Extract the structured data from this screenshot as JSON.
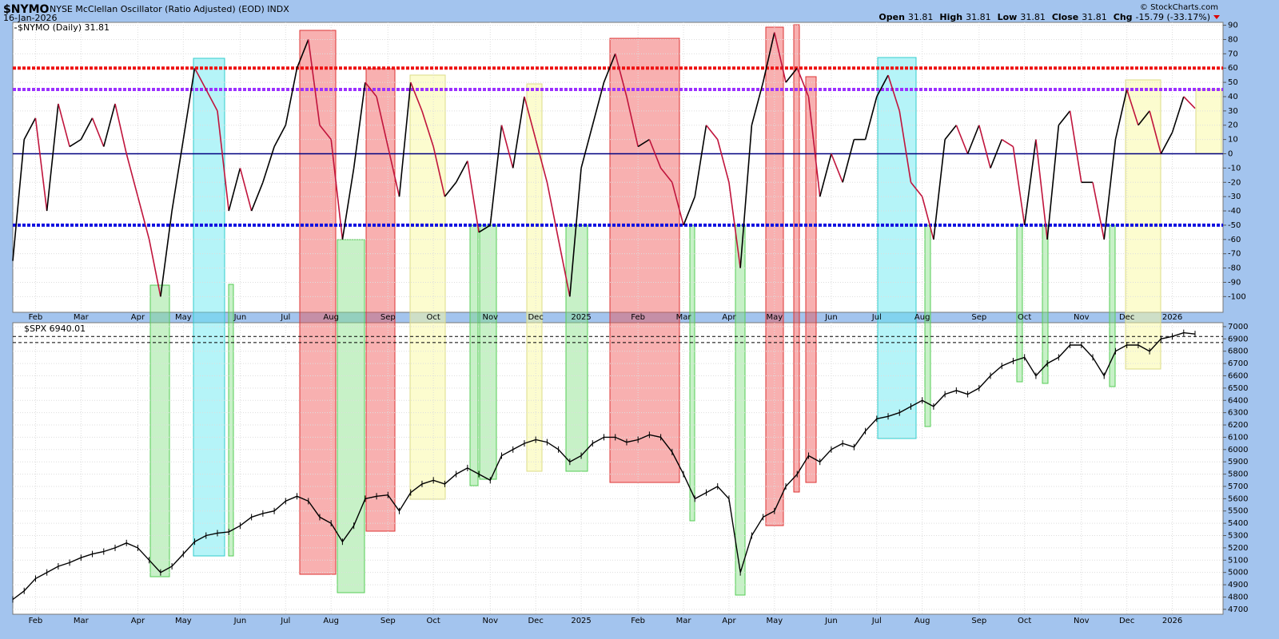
{
  "chart_data": [
    {
      "type": "line",
      "title": "$NYMO",
      "subtitle": "NYSE McClellan Oscillator (Ratio Adjusted) (EOD) INDX",
      "date": "16-Jan-2026",
      "credit": "© StockCharts.com",
      "quote": [
        {
          "label": "Open",
          "value": 31.81
        },
        {
          "label": "High",
          "value": 31.81
        },
        {
          "label": "Low",
          "value": 31.81
        },
        {
          "label": "Close",
          "value": 31.81
        },
        {
          "label": "Chg",
          "value": "-15.79 (-33.17%)"
        }
      ],
      "series": [
        {
          "name": "$NYMO (Daily)",
          "color": "#000000",
          "down_color": "#c0143c",
          "values": [
            -75,
            10,
            25,
            -40,
            35,
            5,
            10,
            25,
            5,
            35,
            0,
            -30,
            -60,
            -100,
            -40,
            10,
            60,
            45,
            30,
            -40,
            -10,
            -40,
            -20,
            5,
            20,
            60,
            80,
            20,
            10,
            -60,
            -10,
            50,
            40,
            5,
            -30,
            50,
            30,
            5,
            -30,
            -20,
            -5,
            -55,
            -50,
            20,
            -10,
            40,
            10,
            -20,
            -60,
            -100,
            -10,
            20,
            50,
            70,
            40,
            5,
            10,
            -10,
            -20,
            -50,
            -30,
            20,
            10,
            -20,
            -80,
            20,
            50,
            85,
            50,
            60,
            40,
            -30,
            0,
            -20,
            10,
            10,
            40,
            55,
            30,
            -20,
            -30,
            -60,
            10,
            20,
            0,
            20,
            -10,
            10,
            5,
            -50,
            10,
            -60,
            20,
            30,
            -20,
            -20,
            -60,
            10,
            45,
            20,
            30,
            0,
            15,
            40,
            31.81
          ]
        }
      ],
      "ylim": [
        -111,
        92
      ],
      "yticks": [
        90,
        80,
        70,
        60,
        50,
        40,
        30,
        20,
        10,
        0,
        -10,
        -20,
        -30,
        -40,
        -50,
        -60,
        -70,
        -80,
        -90,
        -100
      ],
      "xticks": [
        {
          "value": 2,
          "label": "Feb"
        },
        {
          "value": 6,
          "label": "Mar"
        },
        {
          "value": 11,
          "label": "Apr"
        },
        {
          "value": 15,
          "label": "May"
        },
        {
          "value": 20,
          "label": "Jun"
        },
        {
          "value": 24,
          "label": "Jul"
        },
        {
          "value": 28,
          "label": "Aug"
        },
        {
          "value": 33,
          "label": "Sep"
        },
        {
          "value": 37,
          "label": "Oct"
        },
        {
          "value": 42,
          "label": "Nov"
        },
        {
          "value": 46,
          "label": "Dec"
        },
        {
          "value": 50,
          "label": "2025"
        },
        {
          "value": 55,
          "label": "Feb"
        },
        {
          "value": 59,
          "label": "Mar"
        },
        {
          "value": 63,
          "label": "Apr"
        },
        {
          "value": 67,
          "label": "May"
        },
        {
          "value": 72,
          "label": "Jun"
        },
        {
          "value": 76,
          "label": "Jul"
        },
        {
          "value": 80,
          "label": "Aug"
        },
        {
          "value": 85,
          "label": "Sep"
        },
        {
          "value": 89,
          "label": "Oct"
        },
        {
          "value": 94,
          "label": "Nov"
        },
        {
          "value": 98,
          "label": "Dec"
        },
        {
          "value": 102,
          "label": "2026"
        }
      ],
      "hlines": [
        {
          "value": 60,
          "color": "#ee1111",
          "dash": true
        },
        {
          "value": 45,
          "color": "#9b30ff",
          "dash": true
        },
        {
          "value": 0,
          "color": "#000080",
          "dash": false
        },
        {
          "value": -50,
          "color": "#1010e0",
          "dash": true
        }
      ],
      "grid": true
    },
    {
      "type": "line",
      "series": [
        {
          "name": "$SPX",
          "color": "#000000",
          "values": [
            4780,
            4850,
            4950,
            5000,
            5050,
            5080,
            5120,
            5150,
            5170,
            5200,
            5240,
            5200,
            5100,
            5000,
            5050,
            5150,
            5250,
            5300,
            5320,
            5330,
            5380,
            5450,
            5480,
            5500,
            5580,
            5620,
            5580,
            5450,
            5400,
            5250,
            5380,
            5600,
            5620,
            5630,
            5500,
            5650,
            5720,
            5750,
            5720,
            5800,
            5850,
            5800,
            5750,
            5950,
            6000,
            6050,
            6080,
            6060,
            6000,
            5900,
            5950,
            6050,
            6100,
            6100,
            6060,
            6080,
            6120,
            6100,
            5980,
            5800,
            5600,
            5650,
            5700,
            5600,
            5000,
            5300,
            5450,
            5500,
            5700,
            5800,
            5950,
            5900,
            6000,
            6050,
            6020,
            6150,
            6250,
            6270,
            6300,
            6350,
            6400,
            6350,
            6450,
            6480,
            6450,
            6500,
            6600,
            6680,
            6720,
            6750,
            6600,
            6700,
            6750,
            6850,
            6850,
            6750,
            6600,
            6800,
            6850,
            6850,
            6800,
            6900,
            6920,
            6950,
            6940.01
          ]
        }
      ],
      "ylim": [
        4660,
        7032
      ],
      "yticks": [
        7000,
        6900,
        6800,
        6700,
        6600,
        6500,
        6400,
        6300,
        6200,
        6100,
        6000,
        5900,
        5800,
        5700,
        5600,
        5500,
        5400,
        5300,
        5200,
        5100,
        5000,
        4900,
        4800,
        4700
      ],
      "hlines": [
        {
          "value": 6920,
          "color": "#000000",
          "dash": true
        },
        {
          "value": 6870,
          "color": "#000000",
          "dash": true
        }
      ],
      "grid": true
    }
  ]
}
